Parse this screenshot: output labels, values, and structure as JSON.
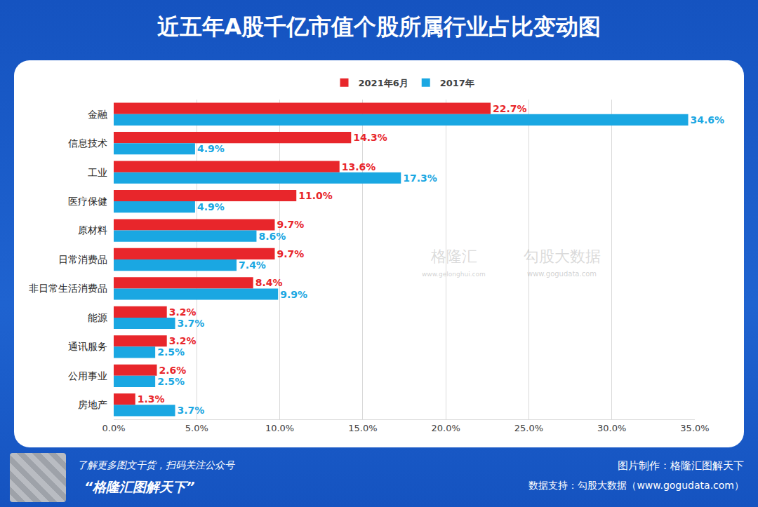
{
  "chart_data": {
    "type": "bar",
    "orientation": "horizontal",
    "title": "近五年A股千亿市值个股所属行业占比变动图",
    "categories": [
      "金融",
      "信息技术",
      "工业",
      "医疗保健",
      "原材料",
      "日常消费品",
      "非日常生活消费品",
      "能源",
      "通讯服务",
      "公用事业",
      "房地产"
    ],
    "series": [
      {
        "name": "2021年6月",
        "color": "#e8262b",
        "values": [
          22.7,
          14.3,
          13.6,
          11.0,
          9.7,
          9.7,
          8.4,
          3.2,
          3.2,
          2.6,
          1.3
        ],
        "value_labels": [
          "22.7%",
          "14.3%",
          "13.6%",
          "11.0%",
          "9.7%",
          "9.7%",
          "8.4%",
          "3.2%",
          "3.2%",
          "2.6%",
          "1.3%"
        ]
      },
      {
        "name": "2017年",
        "color": "#1aa7e2",
        "values": [
          34.6,
          4.9,
          17.3,
          4.9,
          8.6,
          7.4,
          9.9,
          3.7,
          2.5,
          2.5,
          3.7
        ],
        "value_labels": [
          "34.6%",
          "4.9%",
          "17.3%",
          "4.9%",
          "8.6%",
          "7.4%",
          "9.9%",
          "3.7%",
          "2.5%",
          "2.5%",
          "3.7%"
        ]
      }
    ],
    "xlim": [
      0,
      35
    ],
    "xticks": [
      {
        "value": 0,
        "label": "0.0%"
      },
      {
        "value": 5,
        "label": "5.0%"
      },
      {
        "value": 10,
        "label": "10.0%"
      },
      {
        "value": 15,
        "label": "15.0%"
      },
      {
        "value": 20,
        "label": "20.0%"
      },
      {
        "value": 25,
        "label": "25.0%"
      },
      {
        "value": 30,
        "label": "30.0%"
      },
      {
        "value": 35,
        "label": "35.0%"
      }
    ],
    "grid": true,
    "legend": "top",
    "data_labels": true
  },
  "watermark": [
    "格隆汇",
    "www.gelonghui.com",
    "勾股大数据",
    "www.gogudata.com"
  ],
  "footer": {
    "left": [
      "了解更多图文干货，扫码关注公众号",
      "“格隆汇图解天下”"
    ],
    "right": [
      "图片制作：格隆汇图解天下",
      "数据支持：勾股大数据（www.gogudata.com）"
    ]
  }
}
